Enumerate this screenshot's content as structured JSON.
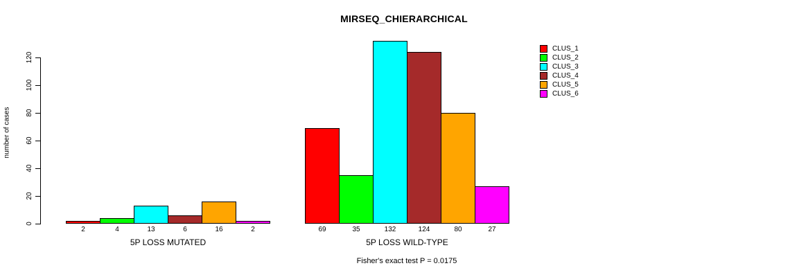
{
  "chart_data": {
    "type": "bar",
    "title": "MIRSEQ_CHIERARCHICAL",
    "ylabel": "number of cases",
    "xlabel": "",
    "ylim": [
      0,
      120
    ],
    "yticks": [
      0,
      20,
      40,
      60,
      80,
      100,
      120
    ],
    "grid": false,
    "legend_position": "top-right",
    "series": [
      {
        "name": "CLUS_1",
        "color": "#FF0000"
      },
      {
        "name": "CLUS_2",
        "color": "#00FF00"
      },
      {
        "name": "CLUS_3",
        "color": "#00FFFF"
      },
      {
        "name": "CLUS_4",
        "color": "#A52A2A"
      },
      {
        "name": "CLUS_5",
        "color": "#FFA500"
      },
      {
        "name": "CLUS_6",
        "color": "#FF00FF"
      }
    ],
    "groups": [
      {
        "label": "5P LOSS MUTATED",
        "values": [
          2,
          4,
          13,
          6,
          16,
          2
        ]
      },
      {
        "label": "5P LOSS WILD-TYPE",
        "values": [
          69,
          35,
          132,
          124,
          80,
          27
        ]
      }
    ],
    "bar_value_labels_shown": true,
    "annotation": "Fisher's exact test P = 0.0175",
    "colors": {
      "background": "#FFFFFF",
      "bar_border": "#000000",
      "axis": "#000000",
      "text": "#000000"
    }
  }
}
